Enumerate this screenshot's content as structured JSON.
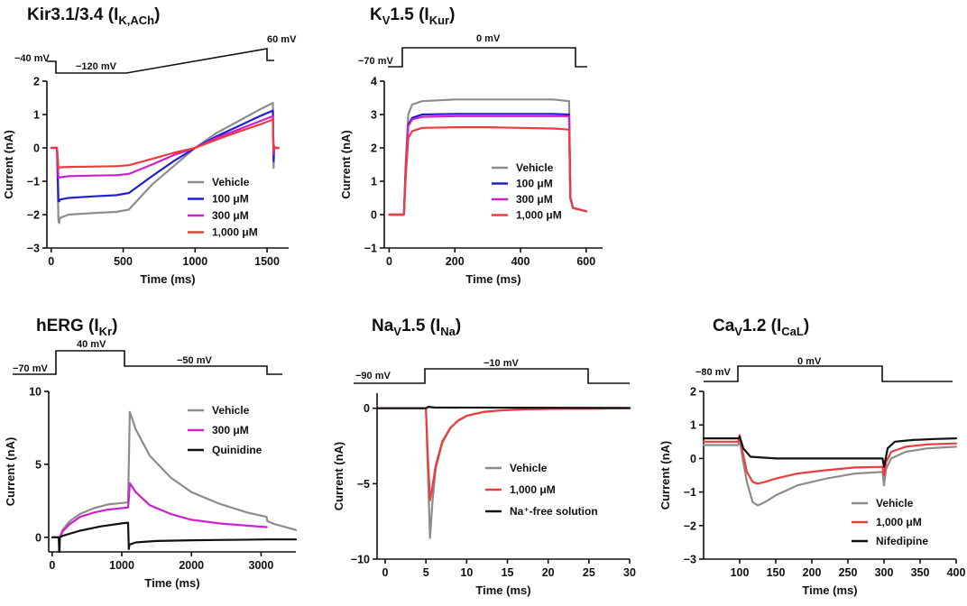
{
  "colors": {
    "vehicle": "#8c8c8c",
    "c100": "#1f1fd6",
    "c300": "#cc22cc",
    "c1000": "#ee3b3b",
    "black": "#111111"
  },
  "chart_data": [
    {
      "id": "kir",
      "type": "line",
      "title": "Kir3.1/3.4 (I",
      "title_sub": "K,ACh",
      "title_end": ")",
      "xlabel": "Time (ms)",
      "ylabel": "Current (nA)",
      "xlim": [
        -30,
        1650
      ],
      "ylim": [
        -3,
        2
      ],
      "xticks": [
        0,
        500,
        1000,
        1500
      ],
      "yticks": [
        -3,
        -2,
        -1,
        0,
        1,
        2
      ],
      "protocol": {
        "levels": [
          {
            "label": "−40 mV"
          },
          {
            "label": "−120 mV"
          },
          {
            "label": "60 mV"
          }
        ]
      },
      "legend": {
        "position": "bottom-right",
        "entries": [
          "Vehicle",
          "100 μM",
          "300 μM",
          "1,000 μM"
        ]
      },
      "series": [
        {
          "name": "Vehicle",
          "color_key": "vehicle",
          "x": [
            0,
            40,
            50,
            55,
            60,
            120,
            300,
            450,
            540,
            700,
            850,
            1000,
            1150,
            1300,
            1450,
            1540,
            1545,
            1550,
            1555,
            1580
          ],
          "y": [
            0,
            0,
            -2.2,
            -2.25,
            -2.1,
            -2.0,
            -1.95,
            -1.92,
            -1.85,
            -1.1,
            -0.55,
            0.0,
            0.45,
            0.8,
            1.15,
            1.35,
            -0.6,
            0.05,
            0.0,
            0.0
          ]
        },
        {
          "name": "100 μM",
          "color_key": "c100",
          "x": [
            0,
            40,
            50,
            55,
            60,
            120,
            300,
            450,
            540,
            700,
            850,
            1000,
            1150,
            1300,
            1450,
            1540,
            1545,
            1550,
            1555,
            1580
          ],
          "y": [
            0,
            0,
            -1.6,
            -1.6,
            -1.55,
            -1.5,
            -1.45,
            -1.42,
            -1.35,
            -0.85,
            -0.4,
            0.0,
            0.35,
            0.65,
            0.95,
            1.12,
            -0.4,
            0.05,
            0.0,
            0.0
          ]
        },
        {
          "name": "300 μM",
          "color_key": "c300",
          "x": [
            0,
            40,
            50,
            55,
            60,
            120,
            300,
            450,
            540,
            700,
            850,
            1000,
            1150,
            1300,
            1450,
            1540,
            1545,
            1550,
            1555,
            1580
          ],
          "y": [
            0,
            0,
            -0.9,
            -0.9,
            -0.88,
            -0.85,
            -0.83,
            -0.82,
            -0.78,
            -0.5,
            -0.22,
            0.0,
            0.3,
            0.55,
            0.8,
            0.95,
            -0.2,
            0.05,
            0.0,
            0.0
          ]
        },
        {
          "name": "1,000 μM",
          "color_key": "c1000",
          "x": [
            0,
            40,
            50,
            55,
            60,
            120,
            300,
            450,
            540,
            700,
            850,
            1000,
            1150,
            1300,
            1450,
            1540,
            1545,
            1550,
            1555,
            1580
          ],
          "y": [
            0,
            0,
            -0.62,
            -0.6,
            -0.58,
            -0.57,
            -0.56,
            -0.55,
            -0.52,
            -0.33,
            -0.15,
            0.0,
            0.25,
            0.48,
            0.7,
            0.85,
            -0.1,
            0.05,
            0.0,
            0.0
          ]
        }
      ]
    },
    {
      "id": "kv15",
      "type": "line",
      "title": "K",
      "title_parts": [
        {
          "t": "K"
        },
        {
          "t": "V",
          "sub": true
        },
        {
          "t": "1.5 (I"
        },
        {
          "t": "Kur",
          "sub": true
        },
        {
          "t": ")"
        }
      ],
      "xlabel": "Time (ms)",
      "ylabel": "Current (nA)",
      "xlim": [
        -15,
        650
      ],
      "ylim": [
        -1,
        4
      ],
      "xticks": [
        0,
        200,
        400,
        600
      ],
      "yticks": [
        -1,
        0,
        1,
        2,
        3,
        4
      ],
      "protocol": {
        "levels": [
          {
            "label": "−70 mV"
          },
          {
            "label": "0 mV"
          }
        ]
      },
      "legend": {
        "position": "middle-right",
        "entries": [
          "Vehicle",
          "100 μM",
          "300 μM",
          "1,000 μM"
        ]
      },
      "series": [
        {
          "name": "Vehicle",
          "color_key": "vehicle",
          "x": [
            0,
            45,
            50,
            58,
            70,
            100,
            200,
            300,
            400,
            500,
            548,
            552,
            560,
            600
          ],
          "y": [
            0,
            0,
            1.5,
            3.0,
            3.3,
            3.4,
            3.45,
            3.45,
            3.45,
            3.45,
            3.4,
            0.5,
            0.2,
            0.1
          ]
        },
        {
          "name": "100 μM",
          "color_key": "c100",
          "x": [
            0,
            45,
            50,
            58,
            70,
            100,
            200,
            300,
            400,
            500,
            548,
            552,
            560,
            600
          ],
          "y": [
            0,
            0,
            1.3,
            2.7,
            2.9,
            3.0,
            3.02,
            3.02,
            3.02,
            3.02,
            3.0,
            0.5,
            0.2,
            0.1
          ]
        },
        {
          "name": "300 μM",
          "color_key": "c300",
          "x": [
            0,
            45,
            50,
            58,
            70,
            100,
            200,
            300,
            400,
            500,
            548,
            552,
            560,
            600
          ],
          "y": [
            0,
            0,
            1.3,
            2.65,
            2.85,
            2.93,
            2.95,
            2.95,
            2.95,
            2.95,
            2.95,
            0.5,
            0.2,
            0.1
          ]
        },
        {
          "name": "1,000 μM",
          "color_key": "c1000",
          "x": [
            0,
            45,
            50,
            58,
            70,
            100,
            200,
            300,
            400,
            500,
            548,
            552,
            560,
            600
          ],
          "y": [
            0,
            0,
            1.1,
            2.3,
            2.5,
            2.6,
            2.62,
            2.62,
            2.6,
            2.58,
            2.55,
            0.5,
            0.2,
            0.1
          ]
        }
      ]
    },
    {
      "id": "herg",
      "type": "line",
      "title_parts": [
        {
          "t": "hERG (I"
        },
        {
          "t": "Kr",
          "sub": true
        },
        {
          "t": ")"
        }
      ],
      "xlabel": "Time (ms)",
      "ylabel": "Current (nA)",
      "xlim": [
        -50,
        3500
      ],
      "ylim": [
        -1,
        10
      ],
      "xticks": [
        0,
        1000,
        2000,
        3000
      ],
      "yticks": [
        0,
        5,
        10
      ],
      "protocol": {
        "levels": [
          {
            "label": "−70 mV"
          },
          {
            "label": "40 mV"
          },
          {
            "label": "−50 mV"
          }
        ]
      },
      "legend": {
        "position": "top-right",
        "entries": [
          "Vehicle",
          "300 μM",
          "Quinidine"
        ]
      },
      "series": [
        {
          "name": "Vehicle",
          "color_key": "vehicle",
          "x": [
            0,
            90,
            100,
            110,
            150,
            250,
            400,
            600,
            800,
            1000,
            1090,
            1100,
            1115,
            1200,
            1400,
            1700,
            2000,
            2400,
            2800,
            3080,
            3090,
            3200,
            3500
          ],
          "y": [
            0,
            0,
            -0.4,
            0.0,
            0.5,
            1.1,
            1.6,
            2.0,
            2.25,
            2.35,
            2.4,
            5.0,
            8.6,
            7.4,
            5.6,
            4.1,
            3.1,
            2.3,
            1.7,
            1.4,
            1.1,
            0.9,
            0.5
          ]
        },
        {
          "name": "300 μM",
          "color_key": "c300",
          "x": [
            0,
            90,
            100,
            110,
            150,
            250,
            400,
            600,
            800,
            1000,
            1090,
            1100,
            1115,
            1200,
            1400,
            1700,
            2000,
            2400,
            2800,
            3080
          ],
          "y": [
            0,
            0,
            -0.3,
            0.0,
            0.4,
            0.9,
            1.4,
            1.7,
            1.9,
            2.0,
            2.05,
            2.6,
            3.7,
            3.1,
            2.2,
            1.6,
            1.2,
            0.95,
            0.8,
            0.7
          ]
        },
        {
          "name": "Quinidine",
          "color_key": "black",
          "x": [
            0,
            95,
            100,
            105,
            110,
            150,
            400,
            700,
            1000,
            1090,
            1100,
            1110,
            1200,
            1500,
            2000,
            2500,
            3080,
            3500
          ],
          "y": [
            0,
            0,
            -1.0,
            -0.9,
            0.0,
            0.1,
            0.45,
            0.75,
            0.95,
            1.0,
            -0.8,
            -0.5,
            -0.35,
            -0.25,
            -0.2,
            -0.18,
            -0.15,
            -0.15
          ]
        }
      ]
    },
    {
      "id": "nav15",
      "type": "line",
      "title_parts": [
        {
          "t": "Na"
        },
        {
          "t": "V",
          "sub": true
        },
        {
          "t": "1.5 (I"
        },
        {
          "t": "Na",
          "sub": true
        },
        {
          "t": ")"
        }
      ],
      "xlabel": "Time (ms)",
      "ylabel": "Current (nA)",
      "xlim": [
        -1,
        30
      ],
      "ylim": [
        -10,
        1
      ],
      "xticks": [
        0,
        5,
        10,
        15,
        20,
        25,
        30
      ],
      "yticks": [
        -10,
        -5,
        0
      ],
      "protocol": {
        "levels": [
          {
            "label": "−90 mV"
          },
          {
            "label": "−10 mV"
          }
        ]
      },
      "legend": {
        "position": "bottom-right",
        "entries": [
          "Vehicle",
          "1,000 μM",
          "Na⁺-free solution"
        ]
      },
      "series": [
        {
          "name": "Vehicle",
          "color_key": "vehicle",
          "x": [
            -1,
            5.0,
            5.2,
            5.5,
            5.8,
            6.2,
            7,
            8,
            9,
            10,
            12,
            14,
            17,
            20,
            25,
            30
          ],
          "y": [
            0,
            0,
            -3.5,
            -8.6,
            -6.2,
            -4.0,
            -2.3,
            -1.3,
            -0.8,
            -0.5,
            -0.25,
            -0.15,
            -0.07,
            -0.04,
            -0.02,
            0
          ]
        },
        {
          "name": "1,000 μM",
          "color_key": "c1000",
          "x": [
            -1,
            5.0,
            5.2,
            5.5,
            5.8,
            6.2,
            7,
            8,
            9,
            10,
            12,
            14,
            17,
            20,
            25,
            30
          ],
          "y": [
            0,
            0,
            -2.8,
            -6.1,
            -5.2,
            -3.8,
            -2.2,
            -1.3,
            -0.8,
            -0.5,
            -0.25,
            -0.15,
            -0.07,
            -0.04,
            -0.02,
            0
          ]
        },
        {
          "name": "Na⁺-free solution",
          "color_key": "black",
          "x": [
            -1,
            5.0,
            5.3,
            6.0,
            30
          ],
          "y": [
            0,
            0,
            0.1,
            0.05,
            0.02
          ]
        }
      ]
    },
    {
      "id": "cav12",
      "type": "line",
      "title_parts": [
        {
          "t": "Ca"
        },
        {
          "t": "V",
          "sub": true
        },
        {
          "t": "1.2 (I"
        },
        {
          "t": "CaL",
          "sub": true
        },
        {
          "t": ")"
        }
      ],
      "xlabel": "Time (ms)",
      "ylabel": "Current (nA)",
      "xlim": [
        50,
        400
      ],
      "ylim": [
        -3,
        2
      ],
      "xticks": [
        100,
        150,
        200,
        250,
        300,
        350,
        400
      ],
      "yticks": [
        -3,
        -2,
        -1,
        0,
        1,
        2
      ],
      "protocol": {
        "levels": [
          {
            "label": "−80 mV"
          },
          {
            "label": "0 mV"
          }
        ]
      },
      "legend": {
        "position": "bottom-right",
        "entries": [
          "Vehicle",
          "1,000 μM",
          "Nifedipine"
        ]
      },
      "series": [
        {
          "name": "Vehicle",
          "color_key": "vehicle",
          "x": [
            50,
            98,
            100,
            104,
            110,
            118,
            125,
            135,
            150,
            180,
            220,
            260,
            298,
            300,
            303,
            310,
            330,
            360,
            400
          ],
          "y": [
            0.4,
            0.4,
            0.6,
            0.0,
            -0.7,
            -1.3,
            -1.4,
            -1.3,
            -1.1,
            -0.8,
            -0.6,
            -0.45,
            -0.4,
            -0.8,
            -0.3,
            0.0,
            0.2,
            0.3,
            0.35
          ]
        },
        {
          "name": "1,000 μM",
          "color_key": "c1000",
          "x": [
            50,
            98,
            100,
            104,
            110,
            118,
            125,
            135,
            150,
            180,
            220,
            260,
            298,
            300,
            303,
            310,
            330,
            360,
            400
          ],
          "y": [
            0.5,
            0.5,
            0.7,
            0.2,
            -0.4,
            -0.7,
            -0.75,
            -0.7,
            -0.6,
            -0.45,
            -0.35,
            -0.27,
            -0.25,
            -0.5,
            -0.1,
            0.2,
            0.35,
            0.42,
            0.45
          ]
        },
        {
          "name": "Nifedipine",
          "color_key": "black",
          "x": [
            50,
            98,
            100,
            105,
            115,
            150,
            200,
            250,
            298,
            300,
            305,
            315,
            340,
            370,
            400
          ],
          "y": [
            0.6,
            0.6,
            0.65,
            0.3,
            0.05,
            0.0,
            0.0,
            0.0,
            0.0,
            -0.25,
            0.3,
            0.5,
            0.55,
            0.58,
            0.6
          ]
        }
      ]
    }
  ]
}
